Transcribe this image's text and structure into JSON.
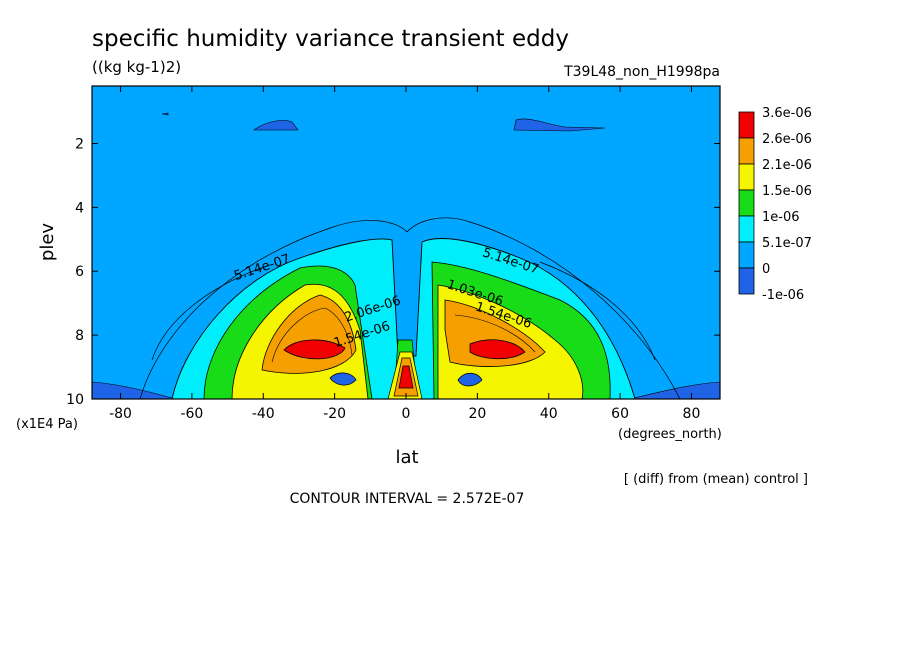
{
  "header": {
    "title": "specific humidity variance transient eddy",
    "units": "((kg kg-1)2)",
    "run_id": "T39L48_non_H1998pa"
  },
  "colors": {
    "level_fills": [
      "#1f64e6",
      "#00a6ff",
      "#00eefc",
      "#18dc18",
      "#f5f500",
      "#f5a000",
      "#f00000"
    ],
    "contour_line": "#000000"
  },
  "chart_data": {
    "type": "contour",
    "xlabel": "lat",
    "ylabel": "plev",
    "x_unit": "(degrees_north)",
    "y_unit": "(x1E4 Pa)",
    "xlim": [
      -88,
      88
    ],
    "ylim": [
      10,
      0.2
    ],
    "x_ticks": [
      -80,
      -60,
      -40,
      -20,
      0,
      20,
      40,
      60,
      80
    ],
    "y_ticks": [
      2,
      4,
      6,
      8,
      10
    ],
    "colorbar": {
      "labels": [
        "3.6e-06",
        "2.6e-06",
        "2.1e-06",
        "1.5e-06",
        "1e-06",
        "5.1e-07",
        "0",
        "-1e-06"
      ],
      "colors": [
        "#f00000",
        "#f5a000",
        "#f5f500",
        "#18dc18",
        "#00eefc",
        "#00a6ff",
        "#1f64e6"
      ]
    },
    "contour_labels": [
      {
        "text": "5.14e-07",
        "lat": -40,
        "plev": 6.0
      },
      {
        "text": "5.14e-07",
        "lat": 29,
        "plev": 5.8
      },
      {
        "text": "1.03e-06",
        "lat": 19,
        "plev": 6.8
      },
      {
        "text": "1.54e-06",
        "lat": 27,
        "plev": 7.5
      },
      {
        "text": "1.54e-06",
        "lat": -12,
        "plev": 8.1
      },
      {
        "text": "2.06e-06",
        "lat": -9,
        "plev": 7.3
      }
    ],
    "contour_interval": "CONTOUR INTERVAL = 2.572E-07",
    "note": "[ (diff) from (mean) control ]",
    "maxima": [
      {
        "lat": -22,
        "plev": 8.4,
        "value": 3.6e-06
      },
      {
        "lat": 25,
        "plev": 8.3,
        "value": 3.6e-06
      },
      {
        "lat": 0,
        "plev": 9.3,
        "value": 3.6e-06
      }
    ]
  }
}
